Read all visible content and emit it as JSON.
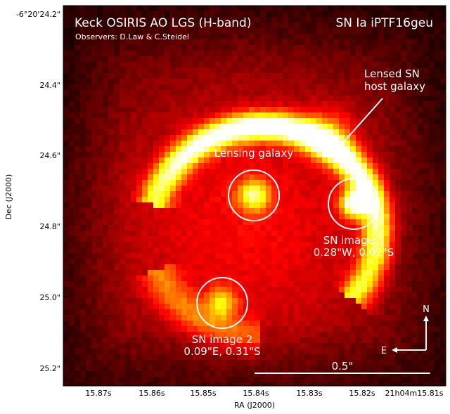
{
  "title": "Keck OSIRIS AO LGS (H-band)",
  "subtitle": "Observers: D.Law & C.Steidel",
  "target": "SN Ia iPTF16geu",
  "xlabel": "RA (J2000)",
  "ylabel": "Dec (J2000)",
  "x_ticks": [
    "15.87s",
    "15.86s",
    "15.85s",
    "15.84s",
    "15.83s",
    "15.82s",
    "21h04m15.81s"
  ],
  "y_ticks": [
    "-6°20'24.2\"",
    "24.4\"",
    "24.6\"",
    "24.8\"",
    "25.0\"",
    "25.2\""
  ],
  "annotations": {
    "lensed_host_line1": "Lensed SN",
    "lensed_host_line2": "host galaxy",
    "lensing_galaxy": "Lensing galaxy",
    "sn1_line1": "SN image 1",
    "sn1_line2": "0.28\"W, 0.02\"S",
    "sn2_line1": "SN image 2",
    "sn2_line2": "0.09\"E, 0.31\"S"
  },
  "compass": {
    "north": "N",
    "east": "E"
  },
  "scale_bar": {
    "label": "0.5\"",
    "arcsec": 0.5
  },
  "colors": {
    "colormap": "hot",
    "overlay": "#ffffff",
    "background_dark": "#3a0000"
  }
}
